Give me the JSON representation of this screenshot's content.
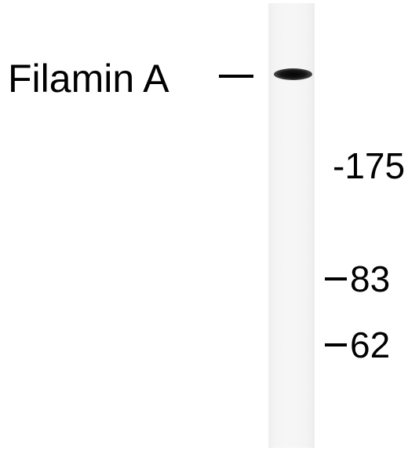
{
  "blot": {
    "protein_label": "Filamin A",
    "markers": [
      {
        "label": "-175"
      },
      {
        "label": "83"
      },
      {
        "label": "62"
      }
    ]
  }
}
